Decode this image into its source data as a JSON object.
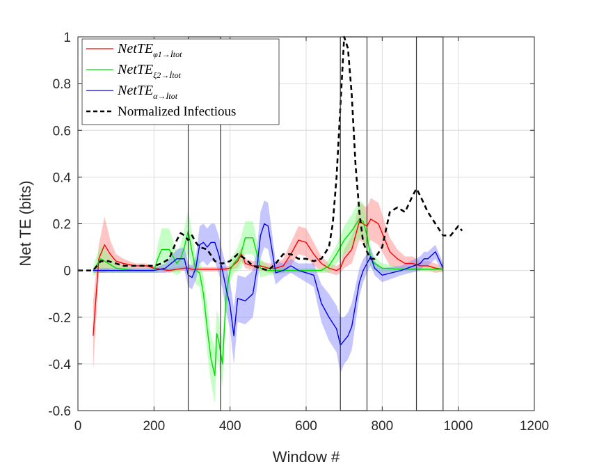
{
  "chart_data": {
    "type": "line",
    "xlabel": "Window #",
    "ylabel": "Net TE (bits)",
    "xlim": [
      0,
      1200
    ],
    "ylim": [
      -0.6,
      1
    ],
    "xticks": [
      0,
      200,
      400,
      600,
      800,
      1000,
      1200
    ],
    "yticks": [
      -0.6,
      -0.4,
      -0.2,
      0,
      0.2,
      0.4,
      0.6,
      0.8,
      1
    ],
    "xtick_labels": [
      "0",
      "200",
      "400",
      "600",
      "800",
      "1000",
      "1200"
    ],
    "ytick_labels": [
      "-0.6",
      "-0.4",
      "-0.2",
      "0",
      "0.2",
      "0.4",
      "0.6",
      "0.8",
      "1"
    ],
    "grid": true,
    "legend_position": "top-left",
    "highlight_boxes": [
      {
        "x": [
          290,
          375
        ],
        "y": [
          -0.6,
          1
        ]
      },
      {
        "x": [
          690,
          760
        ],
        "y": [
          -0.6,
          1
        ]
      },
      {
        "x": [
          890,
          960
        ],
        "y": [
          -0.6,
          1
        ]
      }
    ],
    "series": [
      {
        "legend_main": "NetTE",
        "legend_sub": "φ1→İtot",
        "color": "#ff0000",
        "band_color": "#ff7f7f",
        "style": "solid",
        "x": [
          40,
          55,
          70,
          85,
          100,
          120,
          150,
          180,
          200,
          240,
          260,
          280,
          290,
          300,
          320,
          340,
          360,
          380,
          400,
          420,
          430,
          440,
          460,
          480,
          500,
          520,
          540,
          560,
          580,
          600,
          620,
          640,
          660,
          680,
          690,
          700,
          720,
          740,
          760,
          770,
          780,
          790,
          800,
          820,
          840,
          860,
          880,
          900,
          920,
          940,
          960
        ],
        "y": [
          -0.28,
          0.05,
          0.11,
          0.07,
          0.04,
          0.03,
          0.02,
          0.02,
          0.01,
          0.0,
          0.005,
          0.01,
          0.01,
          0.005,
          0.005,
          0.005,
          0.005,
          0.005,
          0.01,
          0.04,
          0.07,
          0.03,
          0.02,
          0.02,
          0.01,
          0.01,
          0.02,
          0.07,
          0.13,
          0.12,
          0.07,
          0.03,
          0.01,
          0.0,
          0.01,
          0.05,
          0.09,
          0.21,
          0.19,
          0.22,
          0.21,
          0.2,
          0.16,
          0.08,
          0.05,
          0.03,
          0.03,
          0.02,
          0.02,
          0.01,
          0.005
        ],
        "band": [
          0.15,
          0.06,
          0.12,
          0.06,
          0.03,
          0.02,
          0.01,
          0.01,
          0.01,
          0.01,
          0.01,
          0.01,
          0.01,
          0.01,
          0.01,
          0.01,
          0.01,
          0.01,
          0.01,
          0.03,
          0.03,
          0.02,
          0.02,
          0.02,
          0.02,
          0.02,
          0.03,
          0.05,
          0.06,
          0.06,
          0.05,
          0.03,
          0.02,
          0.02,
          0.02,
          0.04,
          0.06,
          0.08,
          0.08,
          0.09,
          0.09,
          0.09,
          0.08,
          0.06,
          0.04,
          0.03,
          0.03,
          0.02,
          0.02,
          0.02,
          0.01
        ]
      },
      {
        "legend_main": "NetTE",
        "legend_sub": "ξ2→İtot",
        "color": "#00dd00",
        "band_color": "#7fff7f",
        "style": "solid",
        "x": [
          40,
          60,
          80,
          100,
          150,
          200,
          210,
          220,
          240,
          260,
          270,
          280,
          290,
          300,
          310,
          320,
          330,
          340,
          350,
          360,
          365,
          370,
          380,
          390,
          400,
          410,
          420,
          430,
          440,
          460,
          480,
          500,
          550,
          600,
          640,
          660,
          680,
          690,
          700,
          720,
          740,
          750,
          760,
          770,
          780,
          800,
          850,
          900,
          950,
          960
        ],
        "y": [
          0.0,
          0.05,
          0.03,
          0.01,
          0.0,
          0.0,
          0.05,
          0.09,
          0.09,
          0.03,
          0.05,
          0.1,
          0.17,
          0.08,
          0.0,
          -0.01,
          -0.1,
          -0.25,
          -0.38,
          -0.45,
          -0.27,
          -0.3,
          -0.4,
          -0.1,
          0.0,
          0.03,
          0.05,
          0.08,
          0.14,
          0.14,
          0.01,
          0.0,
          0.0,
          0.0,
          0.0,
          0.02,
          0.07,
          0.1,
          0.13,
          0.17,
          0.22,
          0.21,
          0.15,
          0.05,
          0.03,
          0.01,
          0.005,
          0.005,
          0.005,
          0.005
        ],
        "band": [
          0.02,
          0.06,
          0.04,
          0.02,
          0.01,
          0.01,
          0.06,
          0.09,
          0.09,
          0.05,
          0.06,
          0.08,
          0.09,
          0.08,
          0.06,
          0.06,
          0.08,
          0.1,
          0.1,
          0.12,
          0.1,
          0.1,
          0.1,
          0.08,
          0.05,
          0.04,
          0.05,
          0.07,
          0.07,
          0.07,
          0.04,
          0.02,
          0.01,
          0.01,
          0.01,
          0.03,
          0.04,
          0.05,
          0.06,
          0.07,
          0.08,
          0.08,
          0.06,
          0.04,
          0.03,
          0.02,
          0.01,
          0.01,
          0.01,
          0.01
        ]
      },
      {
        "legend_main": "NetTE",
        "legend_sub": "α→İtot",
        "color": "#0000ee",
        "band_color": "#7f7fff",
        "style": "solid",
        "x": [
          40,
          100,
          150,
          200,
          230,
          260,
          280,
          290,
          300,
          310,
          320,
          330,
          340,
          350,
          360,
          370,
          380,
          390,
          400,
          410,
          420,
          440,
          460,
          470,
          480,
          490,
          500,
          520,
          540,
          560,
          580,
          600,
          620,
          640,
          660,
          680,
          690,
          700,
          710,
          720,
          740,
          750,
          760,
          770,
          780,
          800,
          850,
          900,
          910,
          920,
          940,
          960
        ],
        "y": [
          0.0,
          0.0,
          0.0,
          0.0,
          0.01,
          0.05,
          0.05,
          -0.02,
          -0.03,
          0.01,
          0.11,
          0.12,
          0.1,
          0.12,
          0.12,
          0.07,
          0.0,
          -0.08,
          -0.15,
          -0.28,
          -0.12,
          -0.13,
          -0.1,
          0.0,
          0.15,
          0.2,
          0.19,
          -0.01,
          0.0,
          0.02,
          0.0,
          -0.01,
          -0.02,
          -0.14,
          -0.2,
          -0.25,
          -0.32,
          -0.3,
          -0.28,
          -0.24,
          -0.05,
          0.0,
          0.03,
          0.06,
          0.01,
          -0.02,
          0.0,
          0.03,
          0.05,
          0.05,
          0.08,
          0.01
        ],
        "band": [
          0.01,
          0.01,
          0.01,
          0.01,
          0.02,
          0.04,
          0.05,
          0.05,
          0.05,
          0.05,
          0.08,
          0.08,
          0.08,
          0.08,
          0.08,
          0.08,
          0.08,
          0.1,
          0.1,
          0.12,
          0.1,
          0.1,
          0.1,
          0.08,
          0.1,
          0.1,
          0.1,
          0.05,
          0.03,
          0.03,
          0.03,
          0.04,
          0.05,
          0.08,
          0.1,
          0.1,
          0.12,
          0.1,
          0.1,
          0.1,
          0.06,
          0.05,
          0.04,
          0.04,
          0.03,
          0.03,
          0.02,
          0.03,
          0.03,
          0.03,
          0.03,
          0.02
        ]
      },
      {
        "legend_main": "Normalized Infectious",
        "legend_sub": "",
        "color": "#000000",
        "band_color": "",
        "style": "dashed",
        "x": [
          0,
          40,
          60,
          80,
          100,
          120,
          150,
          180,
          200,
          220,
          240,
          250,
          260,
          270,
          280,
          290,
          300,
          310,
          320,
          340,
          360,
          380,
          400,
          420,
          440,
          460,
          480,
          500,
          520,
          540,
          560,
          580,
          600,
          620,
          640,
          660,
          670,
          680,
          690,
          700,
          710,
          720,
          730,
          740,
          750,
          760,
          770,
          780,
          800,
          820,
          840,
          860,
          880,
          890,
          900,
          920,
          940,
          960,
          980,
          1000,
          1010
        ],
        "y": [
          0.0,
          0.0,
          0.04,
          0.04,
          0.03,
          0.02,
          0.02,
          0.02,
          0.02,
          0.03,
          0.05,
          0.09,
          0.13,
          0.16,
          0.15,
          0.13,
          0.15,
          0.12,
          0.1,
          0.09,
          0.04,
          0.03,
          0.04,
          0.07,
          0.05,
          0.02,
          0.01,
          0.0,
          0.03,
          0.07,
          0.07,
          0.05,
          0.05,
          0.04,
          0.05,
          0.1,
          0.2,
          0.4,
          0.7,
          1.0,
          0.95,
          0.75,
          0.45,
          0.25,
          0.12,
          0.08,
          0.05,
          0.05,
          0.1,
          0.25,
          0.27,
          0.25,
          0.32,
          0.35,
          0.32,
          0.25,
          0.2,
          0.15,
          0.15,
          0.19,
          0.17
        ]
      }
    ]
  }
}
